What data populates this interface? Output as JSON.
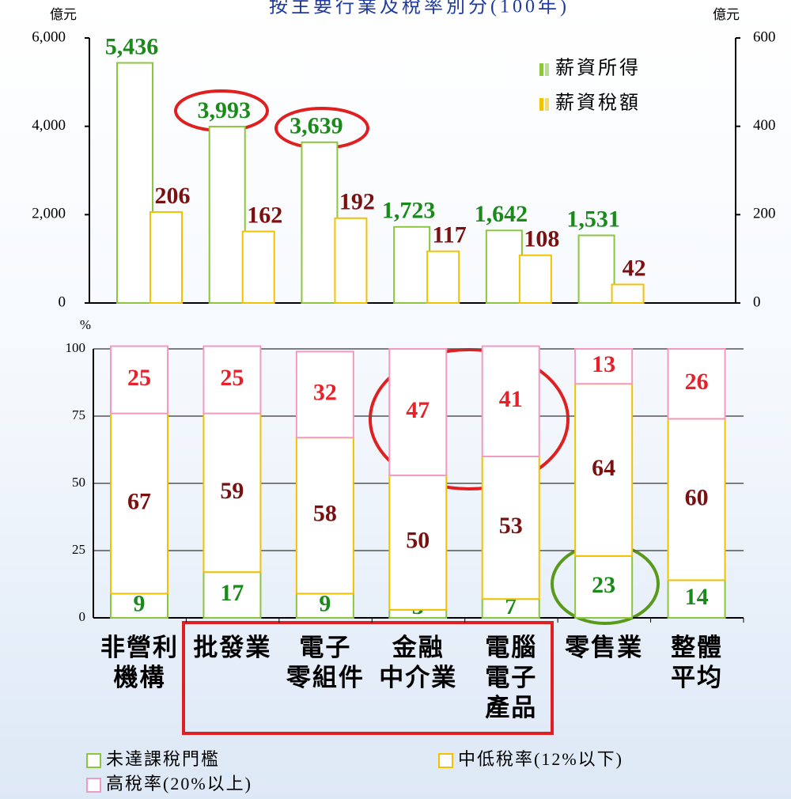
{
  "chart_data": [
    {
      "type": "bar",
      "title": "按主要行業及稅率別分(100年)",
      "y_label": "億元",
      "y2_label": "億元",
      "ylim": [
        0,
        6000
      ],
      "yticks": [
        0,
        {
          "value": 2000,
          "label": "2,000"
        },
        {
          "value": 4000,
          "label": "4,000"
        },
        {
          "value": 6000,
          "label": "6,000"
        }
      ],
      "y2lim": [
        0,
        600
      ],
      "y2ticks": [
        0,
        200,
        400,
        600
      ],
      "grid": false,
      "legend": "upper right",
      "series": [
        {
          "name": "薪資所得",
          "color": "#8cc63f",
          "label_color": "#1a8a1a",
          "values": [
            5436,
            3993,
            3639,
            1723,
            1642,
            1531,
            null
          ],
          "value_labels": [
            "5,436",
            "3,993",
            "3,639",
            "1,723",
            "1,642",
            "1,531",
            null
          ]
        },
        {
          "name": "薪資稅額",
          "color": "#f2c200",
          "label_color": "#7b1010",
          "axis": "y2",
          "values": [
            206,
            162,
            192,
            117,
            108,
            42,
            null
          ]
        }
      ]
    },
    {
      "type": "stacked_bar",
      "y_label": "%",
      "ylim": [
        0,
        100
      ],
      "yticks": [
        0,
        25,
        50,
        75,
        100
      ],
      "grid": true,
      "legend": "bottom",
      "categories": [
        "非營利\n機構",
        "批發業",
        "電子\n零組件",
        "金融\n中介業",
        "電腦\n電子\n產品",
        "零售業",
        "整體\n平均"
      ],
      "series": [
        {
          "name": "未達課稅門檻",
          "color": "#8cc63f",
          "label_color": "#1a8a1a",
          "values": [
            9,
            17,
            9,
            3,
            7,
            23,
            14
          ]
        },
        {
          "name": "中低稅率(12%以下)",
          "color": "#f2c200",
          "label_color": "#7b1010",
          "values": [
            67,
            59,
            58,
            50,
            53,
            64,
            60
          ]
        },
        {
          "name": "高稅率(20%以上)",
          "color": "#f29ac2",
          "label_color": "#e8202a",
          "values": [
            25,
            25,
            32,
            47,
            41,
            13,
            26
          ]
        }
      ]
    }
  ]
}
